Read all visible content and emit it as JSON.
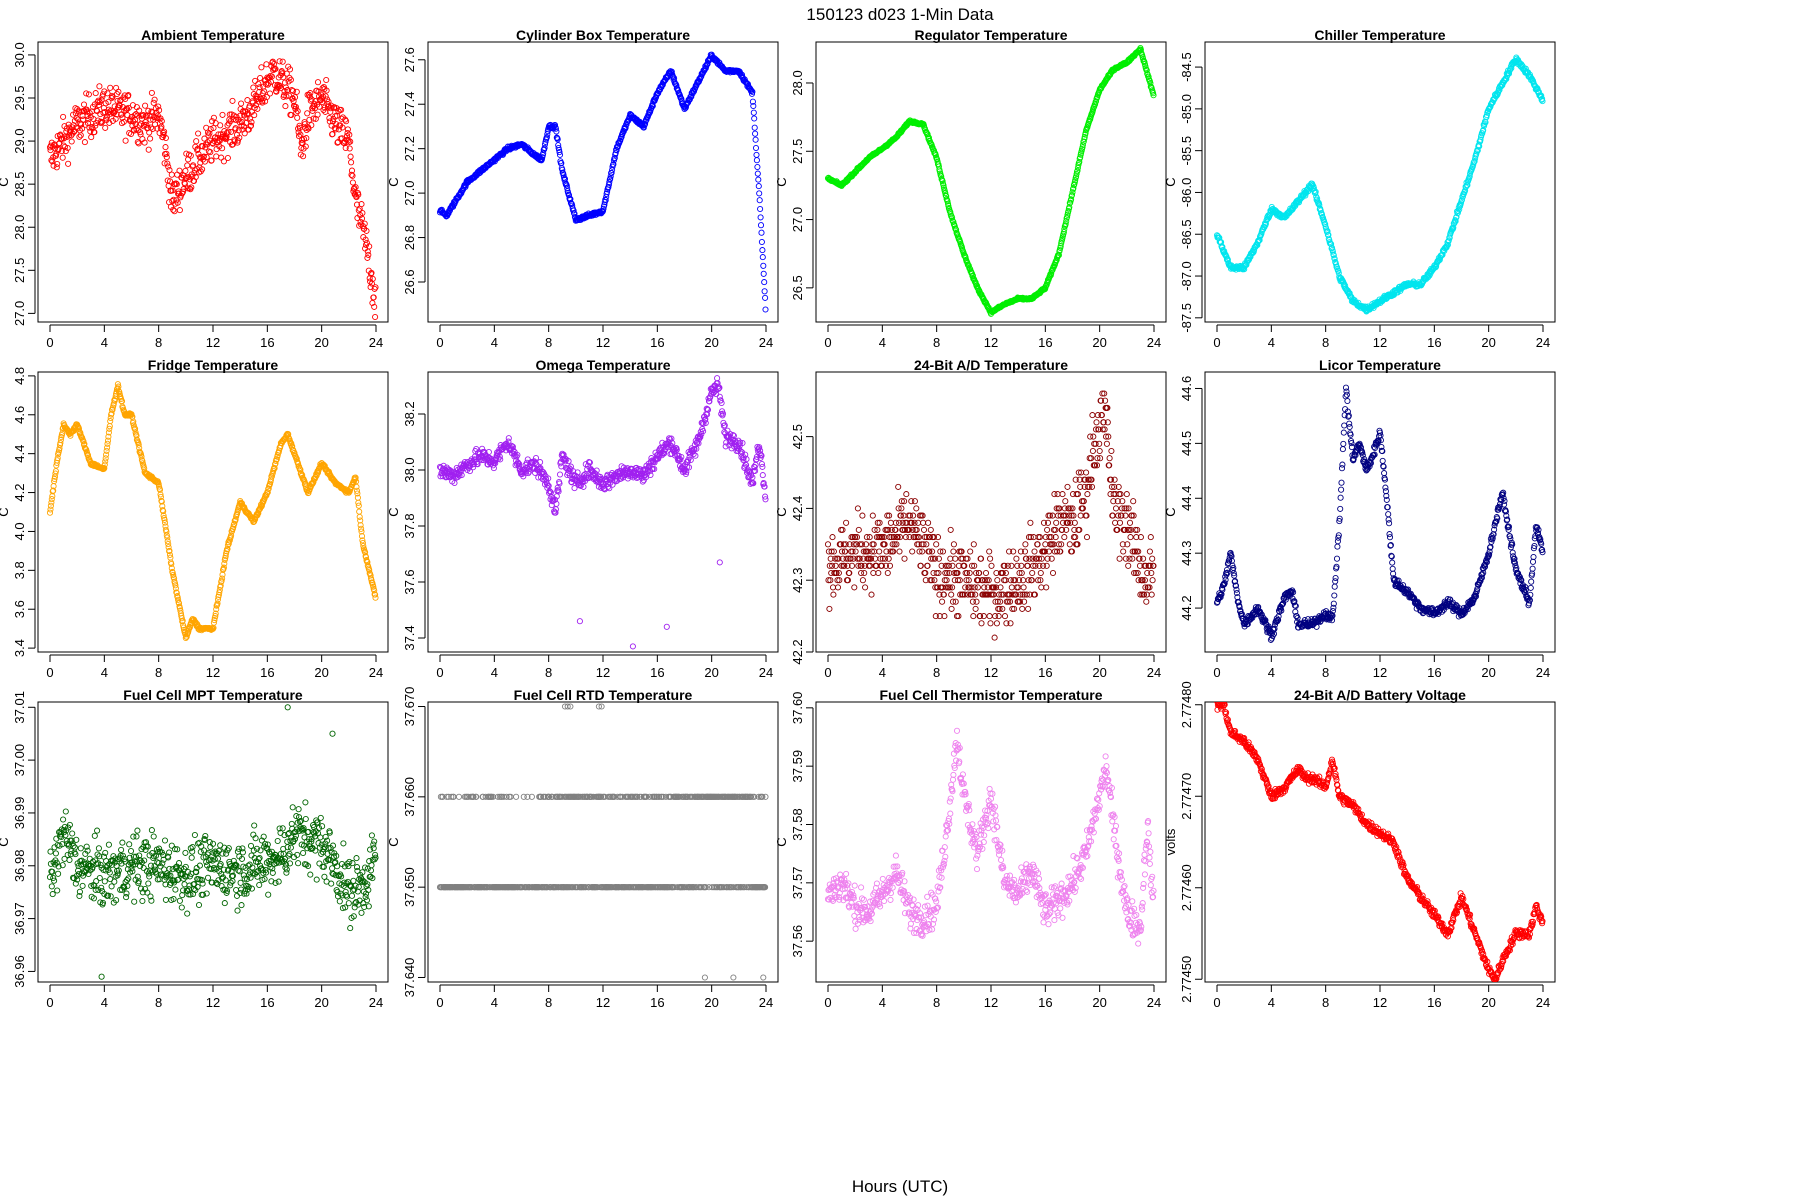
{
  "figure": {
    "title": "150123    d023    1-Min Data",
    "xlabel": "Hours (UTC)"
  },
  "chart_data": [
    {
      "type": "scatter",
      "title": "Ambient Temperature",
      "ylabel": "C",
      "color": "#ff0000",
      "xlim": [
        0,
        24
      ],
      "ylim": [
        26.9,
        30.15
      ],
      "xticks": [
        "0",
        "4",
        "8",
        "12",
        "16",
        "20",
        "24"
      ],
      "yticks": [
        "27.0",
        "27.5",
        "28.0",
        "28.5",
        "29.0",
        "29.5",
        "30.0"
      ],
      "x": [
        0,
        1,
        2,
        3,
        4,
        5,
        6,
        7,
        8,
        8.5,
        9,
        10,
        11,
        12,
        13,
        14,
        15,
        16,
        16.5,
        17,
        18,
        18.5,
        19,
        20,
        21,
        22,
        22.5,
        23,
        23.5,
        24
      ],
      "y": [
        28.8,
        29.0,
        29.2,
        29.3,
        29.4,
        29.35,
        29.3,
        29.2,
        29.3,
        28.9,
        28.3,
        28.6,
        28.8,
        29.0,
        29.1,
        29.2,
        29.4,
        29.7,
        29.8,
        29.7,
        29.5,
        28.9,
        29.3,
        29.5,
        29.2,
        29.0,
        28.3,
        28.0,
        27.6,
        27.1
      ],
      "noise": 0.25
    },
    {
      "type": "scatter",
      "title": "Cylinder Box Temperature",
      "ylabel": "C",
      "color": "#0000ff",
      "xlim": [
        0,
        24
      ],
      "ylim": [
        26.42,
        27.68
      ],
      "xticks": [
        "0",
        "4",
        "8",
        "12",
        "16",
        "20",
        "24"
      ],
      "yticks": [
        "26.6",
        "26.8",
        "27.0",
        "27.2",
        "27.4",
        "27.6"
      ],
      "x": [
        0,
        0.5,
        1,
        2,
        3,
        4,
        5,
        6,
        7,
        7.5,
        8,
        8.5,
        9,
        10,
        11,
        12,
        13,
        14,
        15,
        16,
        17,
        18,
        19,
        20,
        21,
        22,
        23,
        23.5,
        24
      ],
      "y": [
        26.92,
        26.9,
        26.95,
        27.05,
        27.1,
        27.15,
        27.2,
        27.22,
        27.17,
        27.15,
        27.3,
        27.3,
        27.1,
        26.88,
        26.9,
        26.92,
        27.2,
        27.35,
        27.3,
        27.45,
        27.55,
        27.38,
        27.5,
        27.62,
        27.55,
        27.55,
        27.45,
        27.0,
        26.45
      ],
      "noise": 0.008
    },
    {
      "type": "scatter",
      "title": "Regulator Temperature",
      "ylabel": "C",
      "color": "#00ee00",
      "xlim": [
        0,
        24
      ],
      "ylim": [
        26.25,
        28.3
      ],
      "xticks": [
        "0",
        "4",
        "8",
        "12",
        "16",
        "20",
        "24"
      ],
      "yticks": [
        "26.5",
        "27.0",
        "27.5",
        "28.0"
      ],
      "x": [
        0,
        1,
        2,
        3,
        4,
        5,
        6,
        7,
        8,
        9,
        10,
        11,
        12,
        13,
        14,
        15,
        16,
        17,
        18,
        19,
        20,
        21,
        22,
        23,
        24
      ],
      "y": [
        27.3,
        27.25,
        27.35,
        27.45,
        27.52,
        27.6,
        27.72,
        27.7,
        27.45,
        27.05,
        26.75,
        26.5,
        26.32,
        26.38,
        26.42,
        26.42,
        26.5,
        26.75,
        27.2,
        27.65,
        27.95,
        28.1,
        28.15,
        28.25,
        27.9
      ],
      "noise": 0.008
    },
    {
      "type": "scatter",
      "title": "Chiller Temperature",
      "ylabel": "C",
      "color": "#00e5ee",
      "xlim": [
        0,
        24
      ],
      "ylim": [
        -87.55,
        -84.2
      ],
      "xticks": [
        "0",
        "4",
        "8",
        "12",
        "16",
        "20",
        "24"
      ],
      "yticks": [
        "-87.5",
        "-87.0",
        "-86.5",
        "-86.0",
        "-85.5",
        "-85.0",
        "-84.5"
      ],
      "x": [
        0,
        1,
        2,
        3,
        4,
        5,
        6,
        7,
        8,
        9,
        10,
        11,
        12,
        13,
        14,
        15,
        16,
        17,
        18,
        19,
        20,
        21,
        22,
        23,
        24
      ],
      "y": [
        -86.5,
        -86.9,
        -86.9,
        -86.6,
        -86.2,
        -86.3,
        -86.1,
        -85.9,
        -86.4,
        -87.0,
        -87.3,
        -87.4,
        -87.3,
        -87.2,
        -87.1,
        -87.1,
        -86.9,
        -86.6,
        -86.1,
        -85.6,
        -85.0,
        -84.7,
        -84.4,
        -84.6,
        -84.9
      ],
      "noise": 0.03
    },
    {
      "type": "scatter",
      "title": "Fridge Temperature",
      "ylabel": "C",
      "color": "#ffa500",
      "xlim": [
        0,
        24
      ],
      "ylim": [
        3.38,
        4.82
      ],
      "xticks": [
        "0",
        "4",
        "8",
        "12",
        "16",
        "20",
        "24"
      ],
      "yticks": [
        "3.4",
        "3.6",
        "3.8",
        "4.0",
        "4.2",
        "4.4",
        "4.6",
        "4.8"
      ],
      "x": [
        0,
        0.5,
        1,
        1.5,
        2,
        3,
        4,
        4.5,
        5,
        5.5,
        6,
        7,
        8,
        9,
        10,
        10.5,
        11,
        12,
        13,
        14,
        15,
        16,
        17,
        17.5,
        18,
        19,
        20,
        21,
        22,
        22.5,
        23,
        24
      ],
      "y": [
        4.1,
        4.35,
        4.55,
        4.5,
        4.55,
        4.35,
        4.32,
        4.6,
        4.75,
        4.6,
        4.6,
        4.3,
        4.25,
        3.8,
        3.45,
        3.55,
        3.5,
        3.5,
        3.9,
        4.15,
        4.05,
        4.2,
        4.45,
        4.5,
        4.4,
        4.2,
        4.35,
        4.25,
        4.2,
        4.28,
        3.95,
        3.65
      ],
      "noise": 0.008
    },
    {
      "type": "scatter",
      "title": "Omega Temperature",
      "ylabel": "C",
      "color": "#a020f0",
      "xlim": [
        0,
        24
      ],
      "ylim": [
        37.35,
        38.35
      ],
      "xticks": [
        "0",
        "4",
        "8",
        "12",
        "16",
        "20",
        "24"
      ],
      "yticks": [
        "37.4",
        "37.6",
        "37.8",
        "38.0",
        "38.2"
      ],
      "x": [
        0,
        1,
        2,
        3,
        4,
        5,
        6,
        7,
        8,
        8.5,
        9,
        10,
        11,
        12,
        13,
        14,
        15,
        16,
        17,
        18,
        19,
        20,
        20.5,
        21,
        22,
        23,
        23.5,
        24
      ],
      "y": [
        38.0,
        37.98,
        38.02,
        38.05,
        38.03,
        38.1,
        38.0,
        38.02,
        37.95,
        37.85,
        38.05,
        37.95,
        38.0,
        37.95,
        37.98,
        38.0,
        37.98,
        38.05,
        38.1,
        38.0,
        38.1,
        38.28,
        38.3,
        38.12,
        38.1,
        37.95,
        38.1,
        37.9
      ],
      "noise": 0.03,
      "outliers": [
        [
          10.3,
          37.46
        ],
        [
          14.2,
          37.37
        ],
        [
          16.7,
          37.44
        ],
        [
          20.6,
          37.67
        ]
      ]
    },
    {
      "type": "scatter",
      "title": "24-Bit A/D Temperature",
      "ylabel": "C",
      "color": "#8b0000",
      "xlim": [
        0,
        24
      ],
      "ylim": [
        42.2,
        42.59
      ],
      "xticks": [
        "0",
        "4",
        "8",
        "12",
        "16",
        "20",
        "24"
      ],
      "yticks": [
        "42.2",
        "42.3",
        "42.4",
        "42.5"
      ],
      "x": [
        0,
        2,
        4,
        6,
        8,
        10,
        12,
        14,
        16,
        17,
        18,
        19,
        19.5,
        20,
        20.5,
        21,
        22,
        23,
        23.5,
        24
      ],
      "y": [
        42.32,
        42.34,
        42.34,
        42.38,
        42.31,
        42.3,
        42.28,
        42.3,
        42.34,
        42.38,
        42.38,
        42.42,
        42.48,
        42.52,
        42.52,
        42.4,
        42.38,
        42.32,
        42.3,
        42.32
      ],
      "noise": 0.05,
      "step": 0.01
    },
    {
      "type": "scatter",
      "title": "Licor Temperature",
      "ylabel": "C",
      "color": "#000080",
      "xlim": [
        0,
        24
      ],
      "ylim": [
        44.12,
        44.63
      ],
      "xticks": [
        "0",
        "4",
        "8",
        "12",
        "16",
        "20",
        "24"
      ],
      "yticks": [
        "44.2",
        "44.3",
        "44.4",
        "44.5",
        "44.6"
      ],
      "x": [
        0,
        0.5,
        1,
        1.5,
        2,
        3,
        4,
        5,
        5.5,
        6,
        7,
        8,
        8.5,
        9,
        9.5,
        10,
        10.5,
        11,
        11.5,
        12,
        12.5,
        13,
        14,
        15,
        16,
        17,
        18,
        19,
        20,
        21,
        22,
        23,
        23.5,
        24
      ],
      "y": [
        44.21,
        44.24,
        44.3,
        44.22,
        44.17,
        44.2,
        44.15,
        44.22,
        44.23,
        44.17,
        44.17,
        44.19,
        44.18,
        44.35,
        44.6,
        44.47,
        44.5,
        44.45,
        44.48,
        44.52,
        44.4,
        44.25,
        44.23,
        44.2,
        44.19,
        44.21,
        44.19,
        44.22,
        44.3,
        44.41,
        44.27,
        44.21,
        44.35,
        44.3
      ],
      "noise": 0.008
    },
    {
      "type": "scatter",
      "title": "Fuel Cell MPT Temperature",
      "ylabel": "C",
      "color": "#006400",
      "xlim": [
        0,
        24
      ],
      "ylim": [
        36.958,
        37.011
      ],
      "xticks": [
        "0",
        "4",
        "8",
        "12",
        "16",
        "20",
        "24"
      ],
      "yticks": [
        "36.96",
        "36.97",
        "36.98",
        "36.99",
        "37.00",
        "37.01"
      ],
      "x": [
        0,
        1,
        2,
        4,
        6,
        8,
        10,
        12,
        14,
        16,
        17,
        18,
        19,
        20,
        21,
        22,
        23,
        24
      ],
      "y": [
        36.977,
        36.986,
        36.98,
        36.978,
        36.98,
        36.98,
        36.978,
        36.98,
        36.979,
        36.981,
        36.982,
        36.986,
        36.985,
        36.984,
        36.98,
        36.975,
        36.976,
        36.982
      ],
      "noise": 0.006,
      "outliers": [
        [
          3.8,
          36.959
        ],
        [
          17.5,
          37.01
        ],
        [
          20.8,
          37.005
        ]
      ]
    },
    {
      "type": "scatter",
      "title": "Fuel Cell RTD Temperature",
      "ylabel": "C",
      "color": "#808080",
      "xlim": [
        0,
        24
      ],
      "ylim": [
        37.6395,
        37.6705
      ],
      "xticks": [
        "0",
        "4",
        "8",
        "12",
        "16",
        "20",
        "24"
      ],
      "yticks": [
        "37.640",
        "37.650",
        "37.660",
        "37.670"
      ],
      "levels": [
        37.65,
        37.66
      ],
      "extra": [
        [
          9.2,
          37.67
        ],
        [
          9.4,
          37.67
        ],
        [
          9.6,
          37.67
        ],
        [
          11.7,
          37.67
        ],
        [
          11.9,
          37.67
        ],
        [
          19.5,
          37.64
        ],
        [
          21.6,
          37.64
        ],
        [
          23.8,
          37.64
        ]
      ]
    },
    {
      "type": "scatter",
      "title": "Fuel Cell Thermistor Temperature",
      "ylabel": "C",
      "color": "#ee82ee",
      "xlim": [
        0,
        24
      ],
      "ylim": [
        37.553,
        37.601
      ],
      "xticks": [
        "0",
        "4",
        "8",
        "12",
        "16",
        "20",
        "24"
      ],
      "yticks": [
        "37.56",
        "37.57",
        "37.58",
        "37.59",
        "37.60"
      ],
      "x": [
        0,
        1,
        2,
        3,
        4,
        5,
        6,
        7,
        8,
        8.8,
        9.5,
        10,
        11,
        12,
        13,
        14,
        15,
        16,
        17,
        18,
        19,
        20,
        20.5,
        21,
        22,
        23,
        23.5,
        24
      ],
      "y": [
        37.568,
        37.57,
        37.566,
        37.565,
        37.568,
        37.572,
        37.565,
        37.564,
        37.566,
        37.58,
        37.595,
        37.585,
        37.575,
        37.585,
        37.57,
        37.568,
        37.572,
        37.565,
        37.567,
        37.57,
        37.575,
        37.585,
        37.59,
        37.58,
        37.565,
        37.562,
        37.58,
        37.565
      ],
      "noise": 0.003
    },
    {
      "type": "scatter",
      "title": "24-Bit A/D Battery Voltage",
      "ylabel": "volts",
      "color": "#ff0000",
      "xlim": [
        0,
        24
      ],
      "ylim": [
        2.774497,
        2.774803
      ],
      "xticks": [
        "0",
        "4",
        "8",
        "12",
        "16",
        "20",
        "24"
      ],
      "yticks": [
        "2.77450",
        "2.77460",
        "2.77470",
        "2.77480"
      ],
      "x": [
        0,
        0.5,
        1,
        2,
        3,
        4,
        5,
        6,
        6.5,
        7,
        8,
        8.5,
        9,
        10,
        11,
        12,
        13,
        14,
        15,
        16,
        17,
        18,
        19,
        20,
        20.5,
        21,
        22,
        23,
        23.5,
        24
      ],
      "y": [
        2.7748,
        2.7748,
        2.77477,
        2.77476,
        2.77474,
        2.7747,
        2.77471,
        2.77473,
        2.77472,
        2.77472,
        2.77471,
        2.77474,
        2.7747,
        2.77469,
        2.77467,
        2.77466,
        2.77465,
        2.77461,
        2.77459,
        2.77457,
        2.77455,
        2.77459,
        2.77455,
        2.77451,
        2.7745,
        2.77452,
        2.77455,
        2.77455,
        2.77458,
        2.77456
      ],
      "noise": 5e-06
    }
  ]
}
